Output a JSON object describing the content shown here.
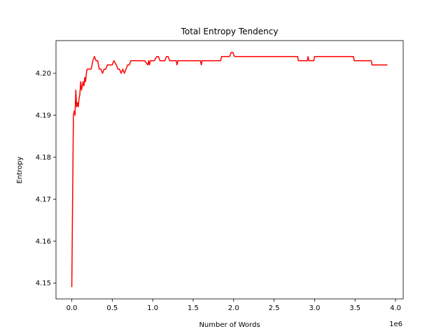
{
  "chart_data": {
    "type": "line",
    "title": "Total Entropy Tendency",
    "xlabel": "Number of Words",
    "ylabel": "Entropy",
    "x_offset_label": "1e6",
    "xlim": [
      -0.195,
      4.095
    ],
    "ylim": [
      4.1462,
      4.2078
    ],
    "x_ticks": [
      0.0,
      0.5,
      1.0,
      1.5,
      2.0,
      2.5,
      3.0,
      3.5,
      4.0
    ],
    "x_tick_labels": [
      "0.0",
      "0.5",
      "1.0",
      "1.5",
      "2.0",
      "2.5",
      "3.0",
      "3.5",
      "4.0"
    ],
    "y_ticks": [
      4.15,
      4.16,
      4.17,
      4.18,
      4.19,
      4.2
    ],
    "y_tick_labels": [
      "4.15",
      "4.16",
      "4.17",
      "4.18",
      "4.19",
      "4.20"
    ],
    "grid": false,
    "series": [
      {
        "color": "#ff0000",
        "x": [
          0.0,
          0.02,
          0.03,
          0.04,
          0.05,
          0.06,
          0.07,
          0.08,
          0.09,
          0.1,
          0.11,
          0.12,
          0.13,
          0.14,
          0.15,
          0.16,
          0.17,
          0.18,
          0.19,
          0.2,
          0.22,
          0.24,
          0.26,
          0.28,
          0.3,
          0.31,
          0.32,
          0.34,
          0.36,
          0.38,
          0.4,
          0.42,
          0.44,
          0.46,
          0.48,
          0.5,
          0.52,
          0.55,
          0.57,
          0.59,
          0.61,
          0.63,
          0.65,
          0.67,
          0.69,
          0.71,
          0.73,
          0.75,
          0.77,
          0.8,
          0.85,
          0.9,
          0.94,
          0.95,
          0.96,
          0.97,
          0.98,
          0.99,
          1.0,
          1.02,
          1.05,
          1.07,
          1.09,
          1.11,
          1.13,
          1.15,
          1.17,
          1.19,
          1.21,
          1.23,
          1.25,
          1.27,
          1.29,
          1.3,
          1.31,
          1.32,
          1.4,
          1.5,
          1.59,
          1.6,
          1.61,
          1.62,
          1.7,
          1.8,
          1.84,
          1.85,
          1.9,
          1.95,
          1.97,
          1.99,
          2.01,
          2.02,
          2.1,
          2.3,
          2.5,
          2.7,
          2.79,
          2.8,
          2.85,
          2.91,
          2.92,
          2.93,
          2.94,
          2.99,
          3.0,
          3.01,
          3.1,
          3.2,
          3.3,
          3.4,
          3.48,
          3.49,
          3.6,
          3.7,
          3.71,
          3.72,
          3.8,
          3.9
        ],
        "y": [
          4.149,
          4.19,
          4.191,
          4.19,
          4.196,
          4.192,
          4.193,
          4.192,
          4.194,
          4.195,
          4.198,
          4.196,
          4.197,
          4.198,
          4.197,
          4.199,
          4.198,
          4.2,
          4.201,
          4.201,
          4.201,
          4.201,
          4.203,
          4.204,
          4.203,
          4.203,
          4.203,
          4.201,
          4.201,
          4.2,
          4.201,
          4.201,
          4.202,
          4.202,
          4.202,
          4.202,
          4.203,
          4.202,
          4.201,
          4.201,
          4.2,
          4.201,
          4.2,
          4.201,
          4.202,
          4.202,
          4.203,
          4.203,
          4.203,
          4.203,
          4.203,
          4.203,
          4.202,
          4.203,
          4.202,
          4.203,
          4.203,
          4.203,
          4.203,
          4.203,
          4.204,
          4.204,
          4.203,
          4.203,
          4.203,
          4.203,
          4.204,
          4.204,
          4.203,
          4.203,
          4.203,
          4.203,
          4.203,
          4.202,
          4.203,
          4.203,
          4.203,
          4.203,
          4.203,
          4.202,
          4.203,
          4.203,
          4.203,
          4.203,
          4.203,
          4.204,
          4.204,
          4.204,
          4.205,
          4.205,
          4.204,
          4.204,
          4.204,
          4.204,
          4.204,
          4.204,
          4.204,
          4.203,
          4.203,
          4.203,
          4.204,
          4.203,
          4.203,
          4.203,
          4.204,
          4.204,
          4.204,
          4.204,
          4.204,
          4.204,
          4.204,
          4.203,
          4.203,
          4.203,
          4.202,
          4.202,
          4.202,
          4.202
        ]
      }
    ]
  }
}
